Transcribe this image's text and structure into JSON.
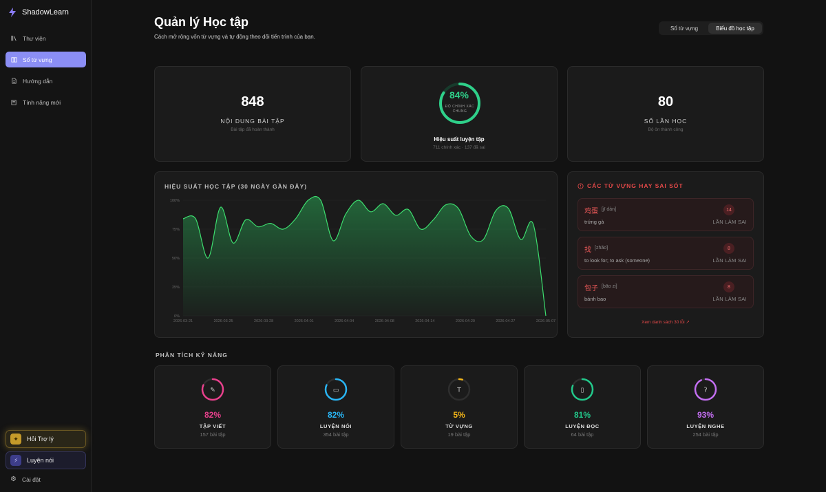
{
  "app": {
    "name": "ShadowLearn"
  },
  "sidebar": {
    "items": [
      {
        "label": "Thư viện",
        "icon": "library-icon"
      },
      {
        "label": "Sổ từ vựng",
        "icon": "book-icon"
      },
      {
        "label": "Hướng dẫn",
        "icon": "document-icon"
      },
      {
        "label": "Tính năng mới",
        "icon": "newspaper-icon"
      }
    ],
    "assistant_label": "Hỏi Trợ lý",
    "speaking_label": "Luyện nói",
    "settings_label": "Cài đặt"
  },
  "header": {
    "title": "Quản lý Học tập",
    "subtitle": "Cách mở rộng vốn từ vựng và tự động theo dõi tiến trình của bạn.",
    "tabs": [
      "Sổ từ vựng",
      "Biểu đồ học tập"
    ]
  },
  "stats": {
    "exercises": {
      "value": "848",
      "label": "NỘI DUNG BÀI TẬP",
      "sub": "Bài tập đã hoàn thành"
    },
    "accuracy": {
      "value": "84%",
      "percent": 84,
      "ring_label": "ĐỘ CHÍNH XÁC CHUNG",
      "label": "Hiệu suất luyện tập",
      "sub": "711 chính xác · 137 đã sai"
    },
    "sessions": {
      "value": "80",
      "label": "SỐ LẦN HỌC",
      "sub": "Bộ ôn thành công"
    }
  },
  "performance": {
    "title": "HIỆU SUẤT HỌC TẬP (30 NGÀY GẦN ĐÂY)",
    "accent": "#3ddc6e"
  },
  "chart_data": {
    "type": "area",
    "title": "HIỆU SUẤT HỌC TẬP (30 NGÀY GẦN ĐÂY)",
    "ylim": [
      0,
      100
    ],
    "y_ticks": [
      "0%",
      "25%",
      "50%",
      "75%",
      "100%"
    ],
    "x_ticks": [
      "2026-03-21",
      "2026-03-25",
      "2026-03-28",
      "2026-04-01",
      "2026-04-04",
      "2026-04-08",
      "2026-04-14",
      "2026-04-20",
      "2026-04-27",
      "2026-05-07"
    ],
    "values": [
      84,
      84,
      50,
      94,
      63,
      83,
      77,
      80,
      75,
      84,
      100,
      100,
      65,
      88,
      100,
      90,
      97,
      87,
      92,
      75,
      83,
      96,
      93,
      69,
      66,
      91,
      93,
      66,
      79,
      0
    ]
  },
  "mistakes": {
    "title": "CÁC TỪ VỰNG HAY SAI SÓT",
    "items": [
      {
        "word": "鸡蛋",
        "pinyin": "[jī dàn]",
        "meaning": "trứng gà",
        "count": "14",
        "label": "LẦN LÀM SAI"
      },
      {
        "word": "找",
        "pinyin": "[zhǎo]",
        "meaning": "to look for; to ask (someone)",
        "count": "8",
        "label": "LẦN LÀM SAI"
      },
      {
        "word": "包子",
        "pinyin": "[bāo zi]",
        "meaning": "bánh bao",
        "count": "8",
        "label": "LẦN LÀM SAI"
      }
    ],
    "see_all": "Xem danh sách 30 lỗi ↗"
  },
  "skills": {
    "title": "PHÂN TÍCH KỸ NĂNG",
    "items": [
      {
        "percent": 82,
        "value": "82%",
        "name": "TẬP VIẾT",
        "count": "157 bài tập",
        "color": "#e8408c",
        "icon": "pencil-icon",
        "glyph": "✎"
      },
      {
        "percent": 82,
        "value": "82%",
        "name": "LUYỆN NÓI",
        "count": "354 bài tập",
        "color": "#29b6f6",
        "icon": "chat-icon",
        "glyph": "▭"
      },
      {
        "percent": 5,
        "value": "5%",
        "name": "TỪ VỰNG",
        "count": "19 bài tập",
        "color": "#f5b719",
        "icon": "text-icon",
        "glyph": "T"
      },
      {
        "percent": 81,
        "value": "81%",
        "name": "LUYỆN ĐỌC",
        "count": "64 bài tập",
        "color": "#22c98b",
        "icon": "book-open-icon",
        "glyph": "▯"
      },
      {
        "percent": 93,
        "value": "93%",
        "name": "LUYỆN NGHE",
        "count": "254 bài tập",
        "color": "#c26ef0",
        "icon": "ear-icon",
        "glyph": "ʔ"
      }
    ]
  }
}
